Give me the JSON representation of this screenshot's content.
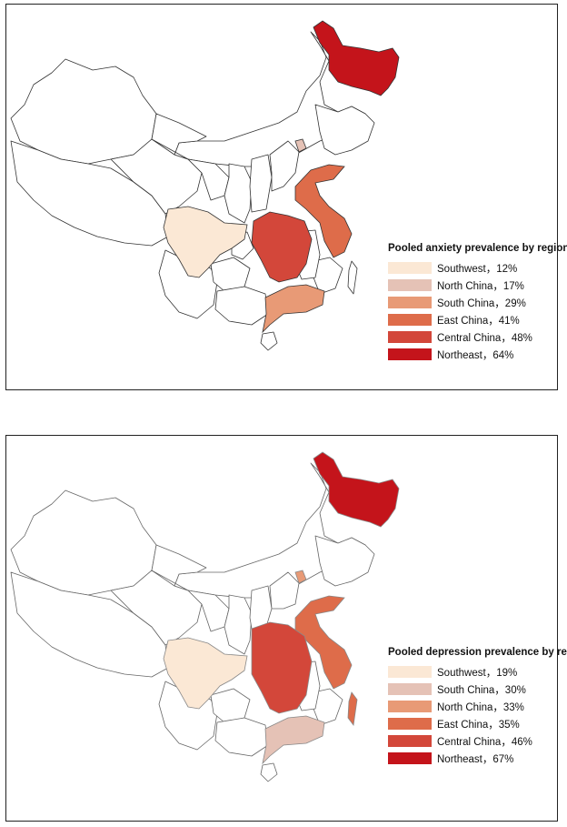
{
  "panels": [
    {
      "legend_title": "Pooled anxiety prevalence by region",
      "legend": [
        {
          "label": "Southwest，12%",
          "color": "#fbe8d5"
        },
        {
          "label": "North China，17%",
          "color": "#e5c2b6"
        },
        {
          "label": "South China，29%",
          "color": "#e89a76"
        },
        {
          "label": "East China，41%",
          "color": "#de6c4a"
        },
        {
          "label": "Central China，48%",
          "color": "#d3473a"
        },
        {
          "label": "Northeast，64%",
          "color": "#c4141b"
        }
      ],
      "regions": {
        "Southwest": 12,
        "North China": 17,
        "South China": 29,
        "East China": 41,
        "Central China": 48,
        "Northeast": 64
      }
    },
    {
      "legend_title": "Pooled depression prevalence by region",
      "legend": [
        {
          "label": "Southwest，19%",
          "color": "#fbe8d5"
        },
        {
          "label": "South China，30%",
          "color": "#e5c2b6"
        },
        {
          "label": "North China，33%",
          "color": "#e89a76"
        },
        {
          "label": "East China，35%",
          "color": "#de6c4a"
        },
        {
          "label": "Central China，46%",
          "color": "#d3473a"
        },
        {
          "label": "Northeast，67%",
          "color": "#c4141b"
        }
      ],
      "regions": {
        "Southwest": 19,
        "South China": 30,
        "North China": 33,
        "East China": 35,
        "Central China": 46,
        "Northeast": 67
      }
    }
  ]
}
